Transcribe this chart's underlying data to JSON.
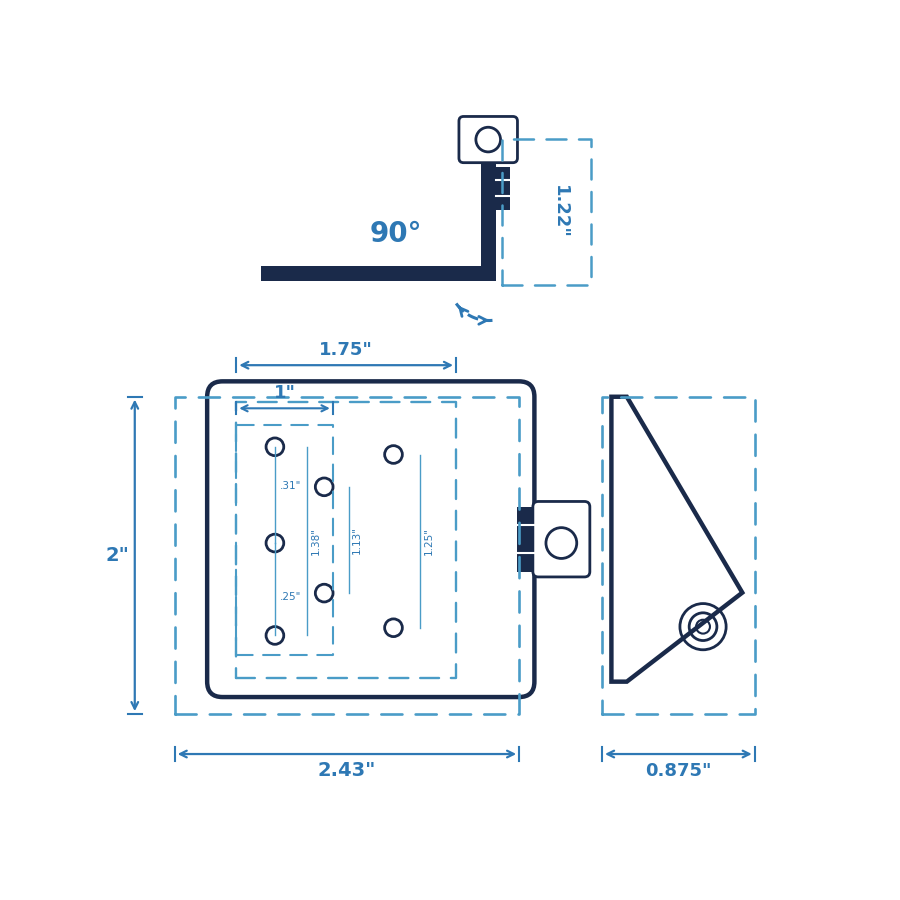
{
  "bg_color": "#ffffff",
  "dark_blue": "#1a2a4a",
  "mid_blue": "#2e78b4",
  "dashed_blue": "#4a9cc7",
  "dim_annotations": {
    "width_main": "2.43\"",
    "height_main": "2\"",
    "width_holes": "1.75\"",
    "width_inner": "1\"",
    "height_side": "0.875\"",
    "height_top": "1.22\"",
    "dim_138": "1.38\"",
    "dim_113": "1.13\"",
    "dim_125": "1.25\"",
    "dim_031": ".31\"",
    "dim_025": ".25\"",
    "angle": "90°"
  }
}
